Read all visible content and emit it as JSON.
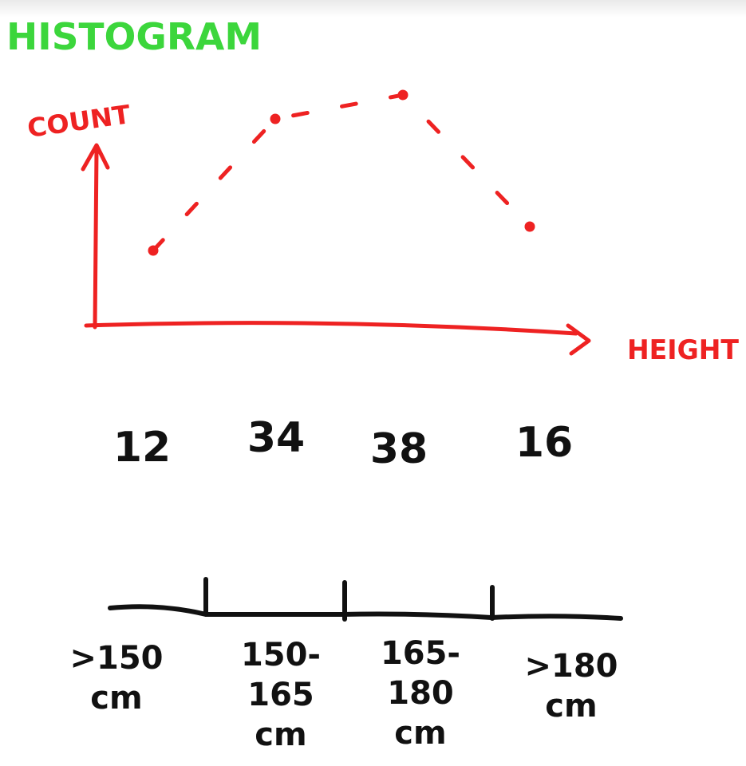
{
  "title": "HISTOGRAM",
  "colors": {
    "title": "#3cd63c",
    "axis": "#ee2222",
    "ink": "#111111"
  },
  "chart_data": {
    "type": "line",
    "title": "HISTOGRAM",
    "ylabel": "COUNT",
    "xlabel": "HEIGHT",
    "categories": [
      {
        "lines": [
          ">150",
          "cm"
        ]
      },
      {
        "lines": [
          "150-",
          "165",
          "cm"
        ]
      },
      {
        "lines": [
          "165-",
          "180",
          "cm"
        ]
      },
      {
        "lines": [
          ">180",
          "cm"
        ]
      }
    ],
    "values": [
      12,
      34,
      38,
      16
    ],
    "value_labels": [
      "12",
      "34",
      "38",
      "16"
    ],
    "line_style": "dashed",
    "grid": false
  }
}
